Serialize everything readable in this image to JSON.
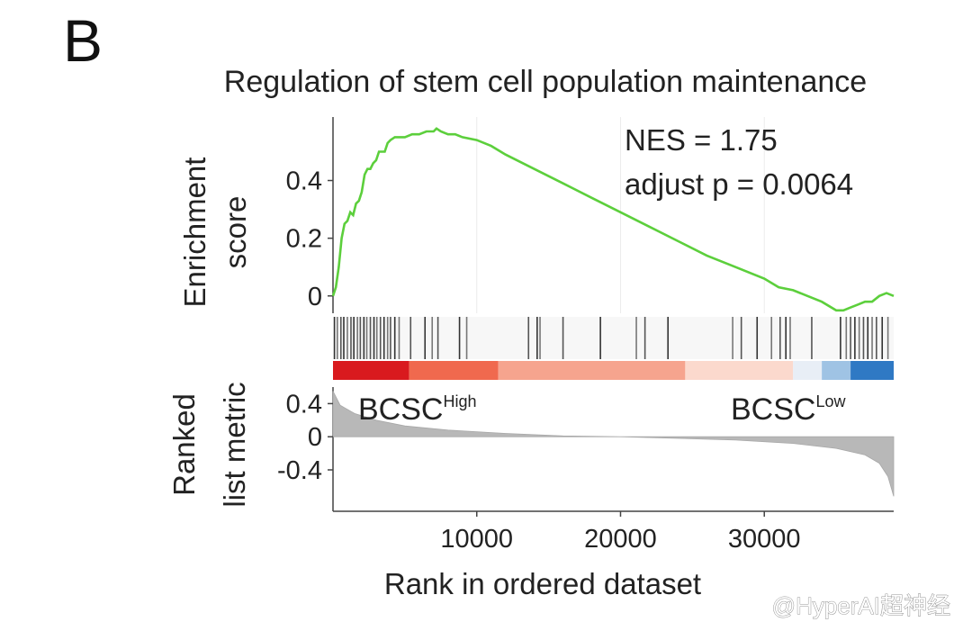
{
  "panel_label": "B",
  "watermark": "@HyperAI超神经",
  "chart_data": {
    "type": "line",
    "title": "Regulation of stem cell population maintenance",
    "stats": {
      "nes": "NES = 1.75",
      "p": "adjust p = 0.0064"
    },
    "xlabel": "Rank in ordered dataset",
    "xlim": [
      0,
      39000
    ],
    "xticks": [
      10000,
      20000,
      30000
    ],
    "xtick_labels": [
      "10000",
      "20000",
      "30000"
    ],
    "top_panel": {
      "ylabel": [
        "Enrichment",
        "score"
      ],
      "ylim": [
        -0.06,
        0.62
      ],
      "yticks": [
        0,
        0.2,
        0.4
      ],
      "ytick_labels": [
        "0",
        "0.2",
        "0.4"
      ],
      "color": "#5ccf3c",
      "series": [
        {
          "x": [
            0,
            200,
            400,
            600,
            800,
            1000,
            1200,
            1400,
            1600,
            1800,
            2000,
            2200,
            2400,
            2600,
            2800,
            3000,
            3200,
            3400,
            3600,
            3800,
            4000,
            4300,
            4600,
            5000,
            5500,
            6000,
            6500,
            7000,
            7200,
            7500,
            8000,
            8500,
            9000,
            10000,
            11000,
            12000,
            14000,
            16000,
            18000,
            20000,
            22000,
            24000,
            26000,
            28000,
            30000,
            31000,
            32000,
            33000,
            34000,
            35000,
            35500,
            36000,
            36500,
            37000,
            37500,
            38000,
            38500,
            39000
          ],
          "y": [
            0.0,
            0.03,
            0.1,
            0.2,
            0.25,
            0.26,
            0.29,
            0.28,
            0.32,
            0.33,
            0.36,
            0.42,
            0.44,
            0.44,
            0.46,
            0.47,
            0.5,
            0.5,
            0.5,
            0.53,
            0.54,
            0.55,
            0.55,
            0.55,
            0.56,
            0.56,
            0.57,
            0.57,
            0.58,
            0.57,
            0.56,
            0.56,
            0.55,
            0.54,
            0.52,
            0.49,
            0.44,
            0.39,
            0.34,
            0.29,
            0.24,
            0.19,
            0.14,
            0.1,
            0.06,
            0.03,
            0.02,
            0.0,
            -0.02,
            -0.05,
            -0.05,
            -0.04,
            -0.03,
            -0.02,
            -0.02,
            0.0,
            0.01,
            0.0
          ]
        }
      ]
    },
    "hits": {
      "positions": [
        100,
        300,
        550,
        750,
        1000,
        1250,
        1450,
        1700,
        1900,
        2150,
        2350,
        2600,
        2850,
        3050,
        3300,
        3550,
        3800,
        4000,
        4300,
        4600,
        5400,
        6400,
        6900,
        7300,
        8800,
        9300,
        13600,
        14200,
        14400,
        16000,
        18600,
        21100,
        21700,
        23300,
        27800,
        28400,
        29500,
        30500,
        31100,
        31500,
        31800,
        33300,
        35300,
        35700,
        36000,
        36300,
        36600,
        36900,
        37200,
        37500,
        37800,
        38200,
        38600
      ]
    },
    "color_bar": {
      "segments": [
        {
          "start": 0,
          "end": 5300,
          "color": "#d91a1e"
        },
        {
          "start": 5300,
          "end": 11500,
          "color": "#f0694e"
        },
        {
          "start": 11500,
          "end": 24500,
          "color": "#f6a48e"
        },
        {
          "start": 24500,
          "end": 32000,
          "color": "#fbd9cd"
        },
        {
          "start": 32000,
          "end": 34000,
          "color": "#e8eef6"
        },
        {
          "start": 34000,
          "end": 36000,
          "color": "#9fc3e4"
        },
        {
          "start": 36000,
          "end": 39000,
          "color": "#2f79c4"
        }
      ],
      "left_label": {
        "text": "BCSC",
        "sup": "High"
      },
      "right_label": {
        "text": "BCSC",
        "sup": "Low"
      }
    },
    "bottom_panel": {
      "ylabel": [
        "Ranked",
        "list metric"
      ],
      "ylim": [
        -0.9,
        0.6
      ],
      "yticks": [
        0.4,
        0,
        -0.4
      ],
      "ytick_labels": [
        "0.4",
        "0",
        "-0.4"
      ],
      "fill_color": "#b8b8b8",
      "series": [
        {
          "x": [
            0,
            500,
            1500,
            3000,
            5000,
            8000,
            12000,
            16000,
            20000,
            24000,
            28000,
            32000,
            35000,
            37000,
            38000,
            38600,
            39000
          ],
          "y": [
            0.55,
            0.38,
            0.28,
            0.2,
            0.13,
            0.08,
            0.04,
            0.01,
            0.0,
            -0.02,
            -0.04,
            -0.08,
            -0.14,
            -0.22,
            -0.32,
            -0.48,
            -0.72
          ]
        }
      ]
    }
  }
}
